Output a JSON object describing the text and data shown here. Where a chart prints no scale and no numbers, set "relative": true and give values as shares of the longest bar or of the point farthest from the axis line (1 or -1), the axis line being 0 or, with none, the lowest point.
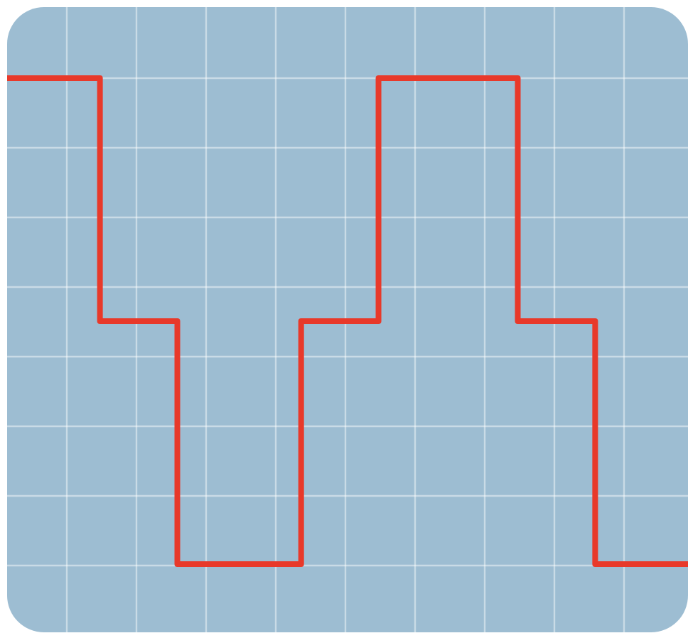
{
  "chart_data": {
    "type": "step",
    "relative": true,
    "grid": true,
    "line_style": "solid",
    "categories": [
      null,
      null,
      null,
      null,
      null,
      null,
      null,
      null,
      null,
      null,
      null,
      null,
      null,
      null,
      null,
      null,
      null,
      null,
      null,
      null,
      null,
      null,
      null,
      null,
      null,
      null,
      null,
      null,
      null,
      null,
      null,
      null,
      null,
      null,
      null,
      null,
      null,
      null,
      null,
      null,
      null,
      null,
      null,
      null,
      null
    ],
    "series": [
      {
        "color": "#e8392a",
        "values": [
          1,
          1,
          1,
          1,
          1,
          1,
          0.5,
          0.5,
          0.5,
          0.5,
          0.5,
          0,
          0,
          0,
          0,
          0,
          0,
          0,
          0,
          0.5,
          0.5,
          0.5,
          0.5,
          0.5,
          1,
          1,
          1,
          1,
          1,
          1,
          1,
          1,
          1,
          0.5,
          0.5,
          0.5,
          0.5,
          0.5,
          0,
          0,
          0,
          0,
          0,
          0,
          0
        ]
      }
    ]
  }
}
